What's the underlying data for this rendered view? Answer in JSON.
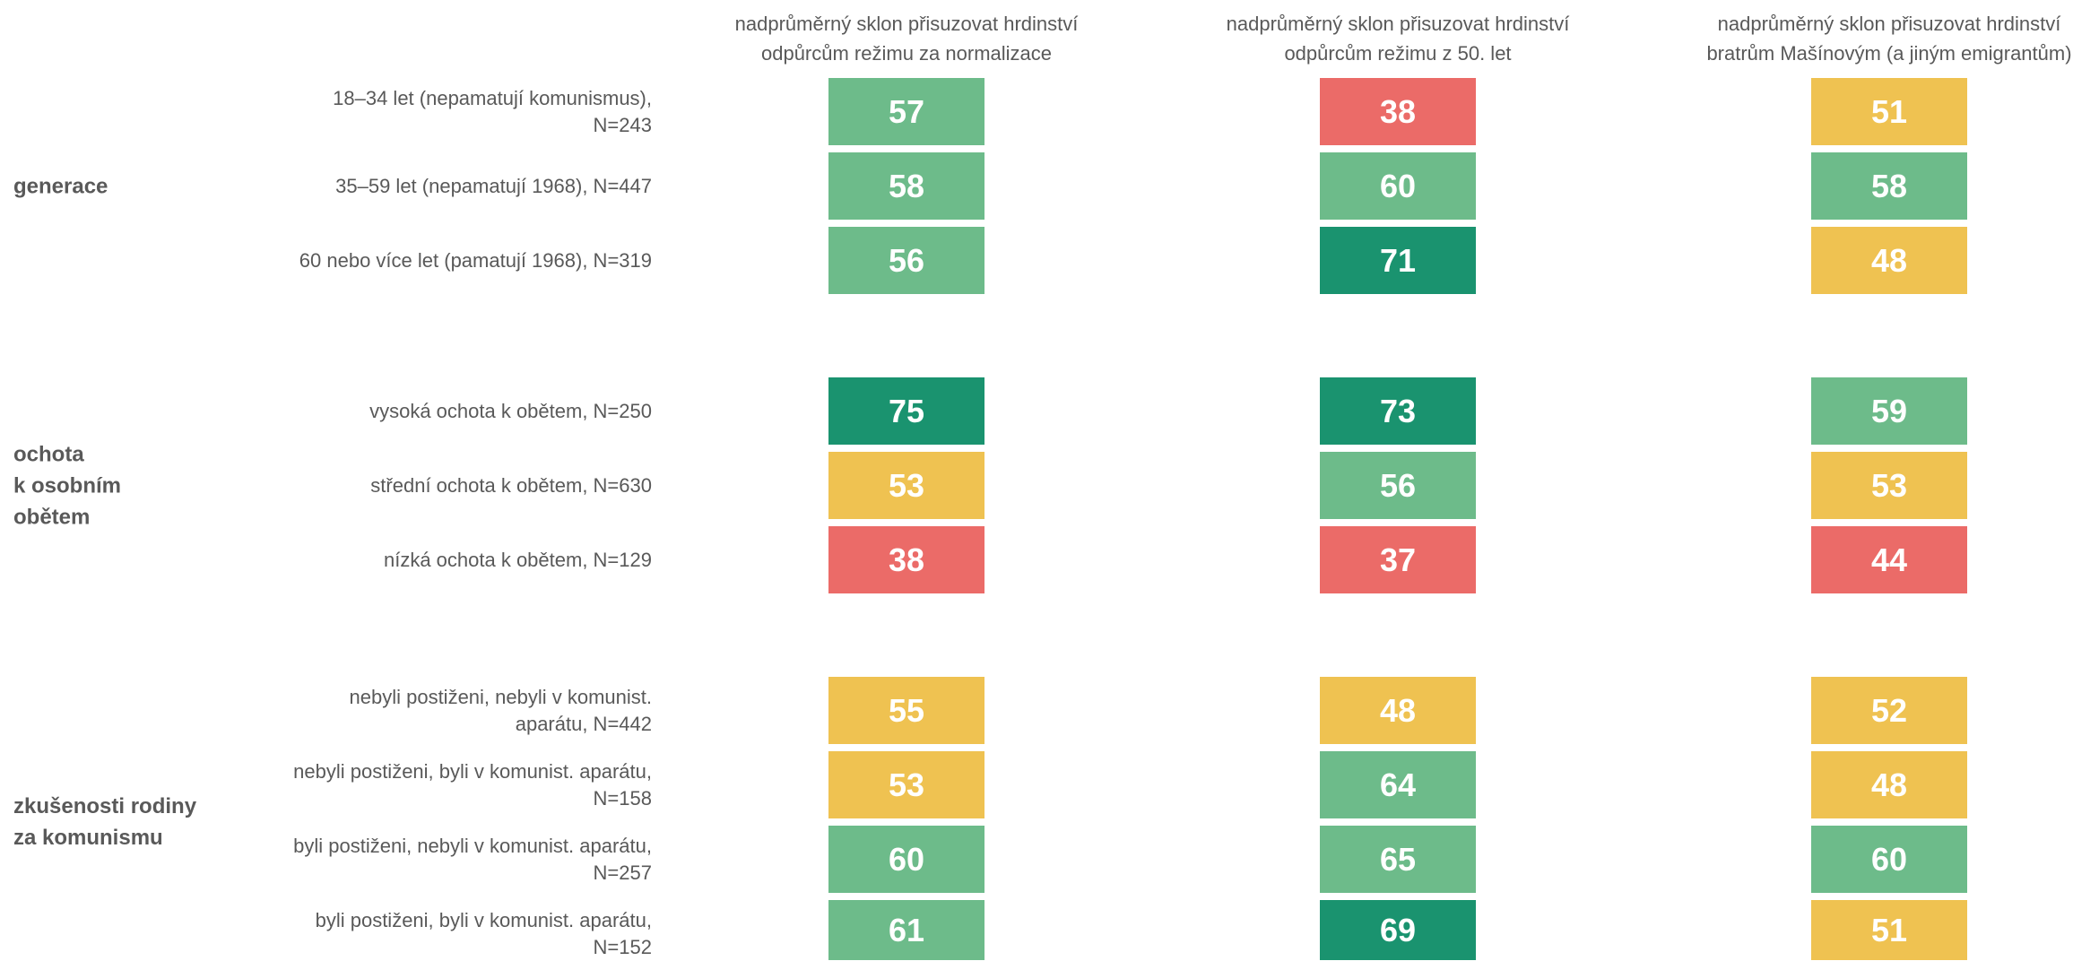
{
  "chart_data": {
    "type": "heatmap",
    "groups": [
      {
        "label": "generace",
        "rows": [
          "18–34 let (nepamatují komunismus),\nN=243",
          "35–59 let (nepamatují 1968), N=447",
          "60 nebo více let (pamatují 1968), N=319"
        ]
      },
      {
        "label": "ochota\nk osobním\nobětem",
        "rows": [
          "vysoká ochota k obětem, N=250",
          "střední ochota k obětem, N=630",
          "nízká ochota k obětem, N=129"
        ]
      },
      {
        "label": "zkušenosti rodiny\nza komunismu",
        "rows": [
          "nebyli postiženi, nebyli v komunist.\naparátu, N=442",
          "nebyli postiženi, byli v komunist. aparátu,\nN=158",
          "byli postiženi, nebyli v komunist. aparátu,\nN=257",
          "byli postiženi, byli v komunist. aparátu,\nN=152"
        ]
      }
    ],
    "series": [
      {
        "name": "nadprůměrný sklon přisuzovat hrdinství\nodpůrcům režimu za normalizace",
        "values": [
          57,
          58,
          56,
          75,
          53,
          38,
          55,
          53,
          60,
          61
        ],
        "colors": [
          "#6dbb8a",
          "#6dbb8a",
          "#6dbb8a",
          "#1a936f",
          "#efc251",
          "#eb6b68",
          "#efc251",
          "#efc251",
          "#6dbb8a",
          "#6dbb8a"
        ]
      },
      {
        "name": "nadprůměrný sklon přisuzovat hrdinství\nodpůrcům režimu z 50. let",
        "values": [
          38,
          60,
          71,
          73,
          56,
          37,
          48,
          64,
          65,
          69
        ],
        "colors": [
          "#eb6b68",
          "#6dbb8a",
          "#1a936f",
          "#1a936f",
          "#6dbb8a",
          "#eb6b68",
          "#efc251",
          "#6dbb8a",
          "#6dbb8a",
          "#1a936f"
        ]
      },
      {
        "name": "nadprůměrný sklon přisuzovat hrdinství\nbratrům Mašínovým (a jiným emigrantům)",
        "values": [
          51,
          58,
          48,
          59,
          53,
          44,
          52,
          48,
          60,
          51
        ],
        "colors": [
          "#efc251",
          "#6dbb8a",
          "#efc251",
          "#6dbb8a",
          "#efc251",
          "#eb6b68",
          "#efc251",
          "#efc251",
          "#6dbb8a",
          "#efc251"
        ]
      }
    ]
  }
}
